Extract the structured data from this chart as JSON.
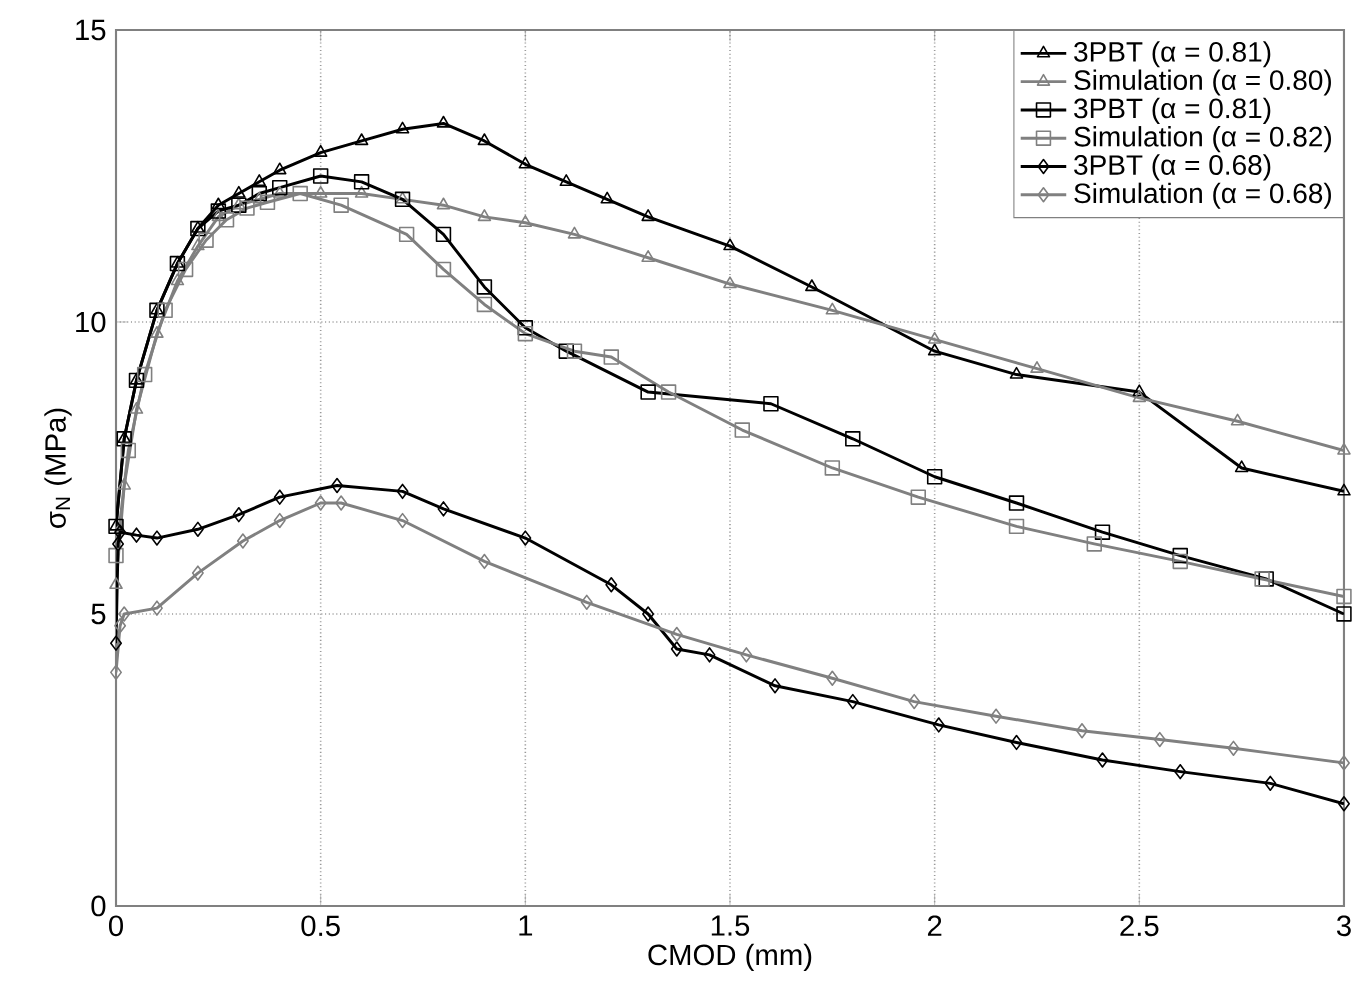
{
  "chart_data": {
    "type": "line",
    "xlabel": "CMOD (mm)",
    "ylabel": "σ$_{N}$ (MPa)",
    "xlim": [
      0,
      3
    ],
    "ylim": [
      0,
      15
    ],
    "xticks": [
      0,
      0.5,
      1,
      1.5,
      2,
      2.5,
      3
    ],
    "yticks": [
      0,
      5,
      10,
      15
    ],
    "grid": true,
    "legend": "top right",
    "line_style": "solid",
    "series": [
      {
        "name": "3PBT (α = 0.81)",
        "color": "#000000",
        "marker": "triangle",
        "x": [
          0,
          0.02,
          0.05,
          0.1,
          0.15,
          0.2,
          0.25,
          0.3,
          0.35,
          0.4,
          0.5,
          0.6,
          0.7,
          0.8,
          0.9,
          1.0,
          1.1,
          1.2,
          1.3,
          1.5,
          1.7,
          2.0,
          2.2,
          2.5,
          2.75,
          3.0
        ],
        "values": [
          6.5,
          8.0,
          9.0,
          10.2,
          11.0,
          11.6,
          12.0,
          12.2,
          12.4,
          12.6,
          12.9,
          13.1,
          13.3,
          13.4,
          13.1,
          12.7,
          12.4,
          12.1,
          11.8,
          11.3,
          10.6,
          9.5,
          9.1,
          8.8,
          7.5,
          7.1
        ]
      },
      {
        "name": "Simulation (α = 0.80)",
        "color": "#808080",
        "marker": "triangle",
        "x": [
          0,
          0.02,
          0.05,
          0.1,
          0.15,
          0.2,
          0.25,
          0.3,
          0.35,
          0.4,
          0.5,
          0.6,
          0.7,
          0.8,
          0.9,
          1.0,
          1.12,
          1.3,
          1.5,
          1.75,
          2.0,
          2.25,
          2.5,
          2.74,
          3.0
        ],
        "values": [
          5.5,
          7.2,
          8.5,
          9.8,
          10.7,
          11.3,
          11.8,
          12.0,
          12.1,
          12.2,
          12.2,
          12.2,
          12.1,
          12.0,
          11.8,
          11.7,
          11.5,
          11.1,
          10.65,
          10.2,
          9.7,
          9.2,
          8.7,
          8.3,
          7.8
        ]
      },
      {
        "name": "3PBT (α = 0.81)",
        "color": "#000000",
        "marker": "square",
        "x": [
          0,
          0.02,
          0.05,
          0.1,
          0.15,
          0.2,
          0.25,
          0.3,
          0.35,
          0.4,
          0.5,
          0.6,
          0.7,
          0.8,
          0.9,
          1.0,
          1.1,
          1.3,
          1.6,
          1.8,
          2.0,
          2.2,
          2.41,
          2.6,
          2.81,
          3.0
        ],
        "values": [
          6.5,
          8.0,
          9.0,
          10.2,
          11.0,
          11.6,
          11.9,
          12.0,
          12.2,
          12.3,
          12.5,
          12.4,
          12.1,
          11.5,
          10.6,
          9.9,
          9.5,
          8.8,
          8.6,
          8.0,
          7.35,
          6.9,
          6.4,
          6.0,
          5.6,
          5.0
        ]
      },
      {
        "name": "Simulation (α = 0.82)",
        "color": "#808080",
        "marker": "square",
        "x": [
          0,
          0.03,
          0.07,
          0.12,
          0.17,
          0.22,
          0.27,
          0.32,
          0.37,
          0.45,
          0.55,
          0.71,
          0.8,
          0.9,
          1.0,
          1.12,
          1.21,
          1.35,
          1.53,
          1.75,
          1.96,
          2.2,
          2.39,
          2.6,
          2.8,
          3.0
        ],
        "values": [
          6.0,
          7.8,
          9.1,
          10.2,
          10.9,
          11.4,
          11.75,
          11.95,
          12.05,
          12.2,
          12.0,
          11.5,
          10.9,
          10.3,
          9.8,
          9.5,
          9.4,
          8.8,
          8.15,
          7.5,
          7.0,
          6.5,
          6.2,
          5.9,
          5.6,
          5.3
        ]
      },
      {
        "name": "3PBT (α = 0.68)",
        "color": "#000000",
        "marker": "diamond",
        "x": [
          0,
          0.005,
          0.01,
          0.05,
          0.1,
          0.2,
          0.3,
          0.4,
          0.54,
          0.7,
          0.8,
          1.0,
          1.21,
          1.3,
          1.37,
          1.45,
          1.61,
          1.8,
          2.01,
          2.2,
          2.41,
          2.6,
          2.82,
          3.0
        ],
        "values": [
          4.5,
          6.2,
          6.4,
          6.35,
          6.3,
          6.45,
          6.7,
          7.0,
          7.2,
          7.1,
          6.8,
          6.3,
          5.5,
          5.0,
          4.4,
          4.3,
          3.77,
          3.5,
          3.1,
          2.8,
          2.5,
          2.3,
          2.1,
          1.75
        ]
      },
      {
        "name": "Simulation (α = 0.68)",
        "color": "#808080",
        "marker": "diamond",
        "x": [
          0,
          0.01,
          0.02,
          0.1,
          0.2,
          0.31,
          0.4,
          0.5,
          0.55,
          0.7,
          0.9,
          1.15,
          1.37,
          1.54,
          1.75,
          1.95,
          2.15,
          2.36,
          2.55,
          2.73,
          3.0
        ],
        "values": [
          4.0,
          4.8,
          5.0,
          5.1,
          5.7,
          6.25,
          6.6,
          6.9,
          6.9,
          6.6,
          5.9,
          5.2,
          4.65,
          4.3,
          3.9,
          3.5,
          3.25,
          3.0,
          2.85,
          2.7,
          2.45
        ]
      }
    ]
  }
}
